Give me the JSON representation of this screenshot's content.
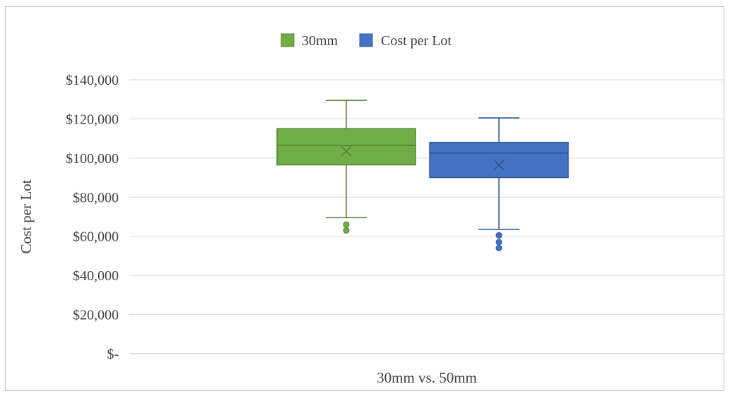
{
  "chart_data": {
    "type": "box",
    "title": "",
    "xlabel": "30mm vs. 50mm",
    "ylabel": "Cost per Lot",
    "ylim": [
      0,
      140000
    ],
    "yticks": [
      0,
      20000,
      40000,
      60000,
      80000,
      100000,
      120000,
      140000
    ],
    "ytick_labels": [
      "$-",
      "$20,000",
      "$40,000",
      "$60,000",
      "$80,000",
      "$100,000",
      "$120,000",
      "$140,000"
    ],
    "grid": true,
    "legend_position": "top",
    "series": [
      {
        "name": "30mm",
        "color": "#70ad47",
        "stroke": "#548235",
        "whisker_low": 69500,
        "q1": 96500,
        "median": 106500,
        "q3": 115000,
        "whisker_high": 129500,
        "mean": 103500,
        "outliers": [
          66000,
          63000
        ]
      },
      {
        "name": "Cost per Lot",
        "color": "#4472c4",
        "stroke": "#2f5597",
        "whisker_low": 63500,
        "q1": 90000,
        "median": 102500,
        "q3": 108000,
        "whisker_high": 120500,
        "mean": 96500,
        "outliers": [
          60500,
          57000,
          54000
        ]
      }
    ]
  }
}
